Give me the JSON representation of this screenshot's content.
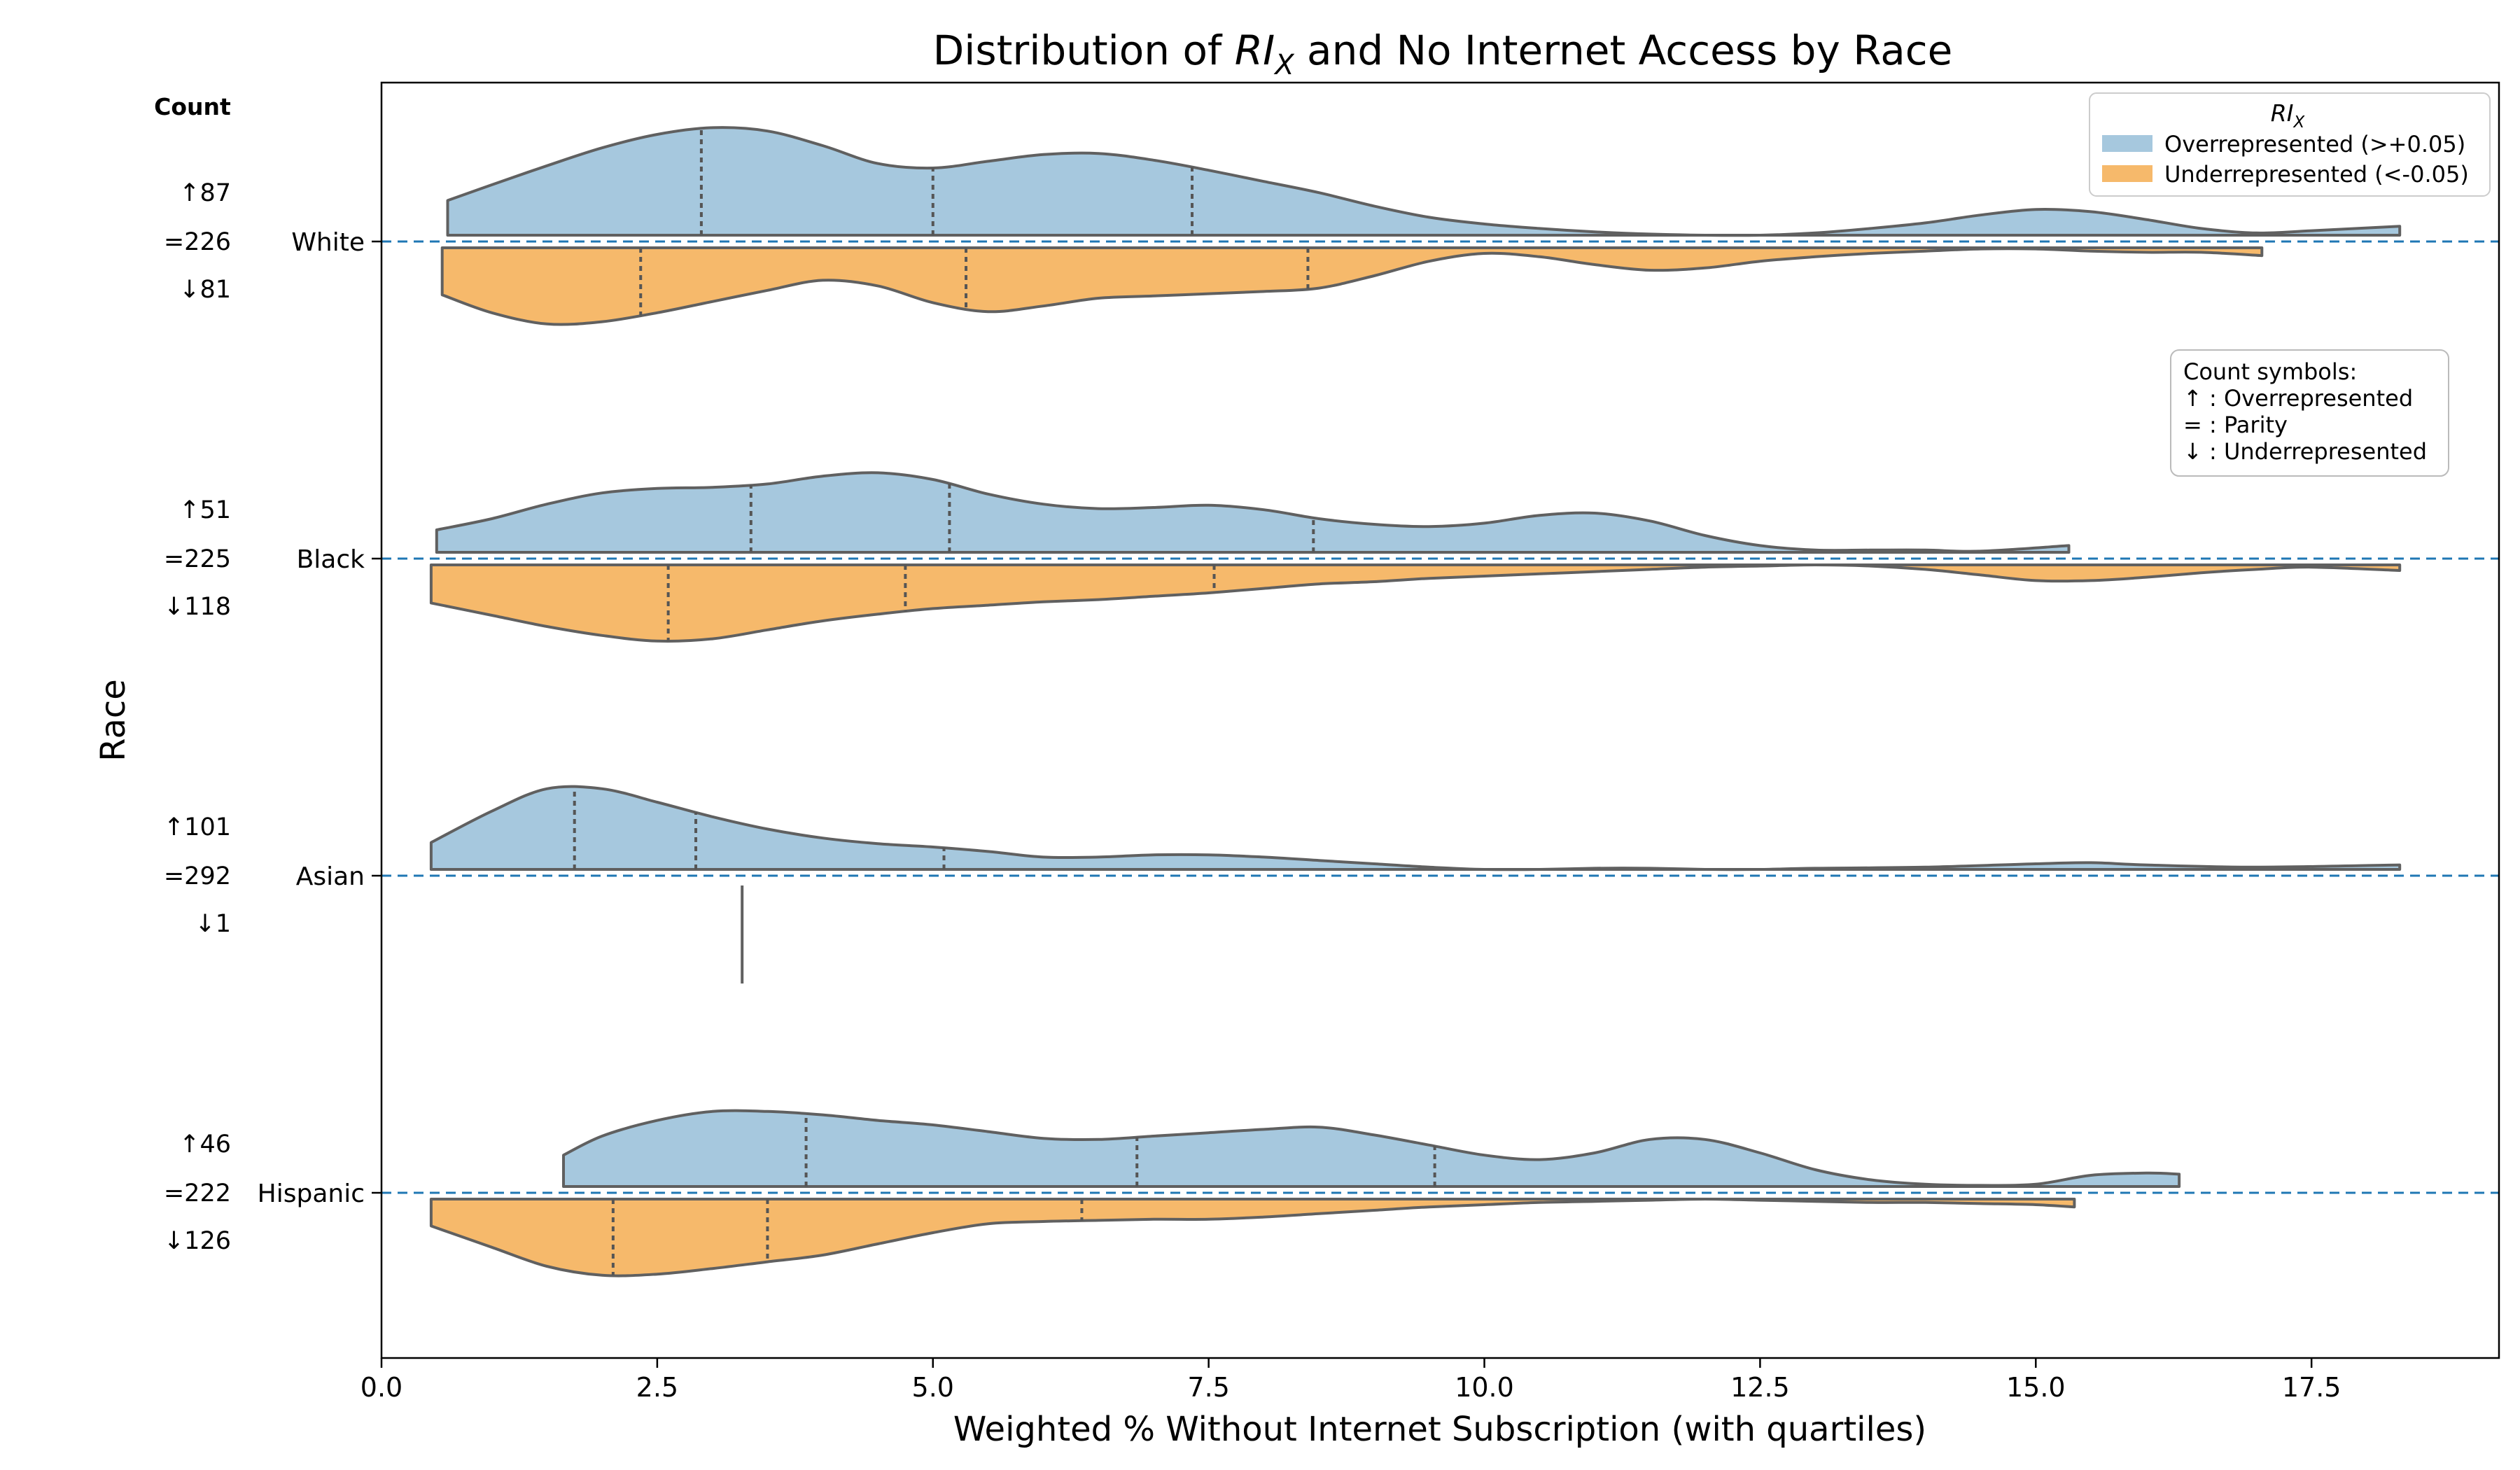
{
  "chart_data": {
    "type": "violin",
    "orientation": "horizontal",
    "split": true,
    "title": {
      "pre": "Distribution of ",
      "main": "RI",
      "sub": "X",
      "post": " and No Internet Access by Race"
    },
    "xlabel": "Weighted % Without Internet Subscription (with quartiles)",
    "ylabel": "Race",
    "xlim": [
      0,
      19.2
    ],
    "x_ticks": [
      0.0,
      2.5,
      5.0,
      7.5,
      10.0,
      12.5,
      15.0,
      17.5
    ],
    "x_tick_labels": [
      "0.0",
      "2.5",
      "5.0",
      "7.5",
      "10.0",
      "12.5",
      "15.0",
      "17.5"
    ],
    "categories": [
      "White",
      "Black",
      "Asian",
      "Hispanic"
    ],
    "count_header": "Count",
    "counts": [
      {
        "race": "White",
        "over": "↑87",
        "parity": "=226",
        "under": "↓81"
      },
      {
        "race": "Black",
        "over": "↑51",
        "parity": "=225",
        "under": "↓118"
      },
      {
        "race": "Asian",
        "over": "↑101",
        "parity": "=292",
        "under": "↓1"
      },
      {
        "race": "Hispanic",
        "over": "↑46",
        "parity": "=222",
        "under": "↓126"
      }
    ],
    "legend": {
      "title_main": "RI",
      "title_sub": "X",
      "position": "top-right",
      "entries": [
        {
          "label": "Overrepresented (>+0.05)",
          "color": "#a6c8de"
        },
        {
          "label": "Underrepresented (<-0.05)",
          "color": "#f6b96b"
        }
      ]
    },
    "count_symbols_box": {
      "lines": [
        "Count symbols:",
        "↑ : Overrepresented",
        "= : Parity",
        "↓ : Underrepresented"
      ],
      "position": "right"
    },
    "colors": {
      "over": "#a6c8de",
      "under": "#f6b96b",
      "outline": "#606060",
      "reference_line": "#1f77b4"
    },
    "series": [
      {
        "race": "White",
        "side": "over",
        "quartiles": [
          2.9,
          5.0,
          7.35
        ],
        "density": [
          [
            0.6,
            0.31
          ],
          [
            1.0,
            0.45
          ],
          [
            1.5,
            0.62
          ],
          [
            2.0,
            0.78
          ],
          [
            2.5,
            0.9
          ],
          [
            3.0,
            0.96
          ],
          [
            3.5,
            0.93
          ],
          [
            4.0,
            0.8
          ],
          [
            4.5,
            0.64
          ],
          [
            5.0,
            0.6
          ],
          [
            5.5,
            0.66
          ],
          [
            6.0,
            0.72
          ],
          [
            6.5,
            0.73
          ],
          [
            7.0,
            0.67
          ],
          [
            7.5,
            0.58
          ],
          [
            8.0,
            0.48
          ],
          [
            8.5,
            0.38
          ],
          [
            9.0,
            0.26
          ],
          [
            9.5,
            0.16
          ],
          [
            10.0,
            0.1
          ],
          [
            10.5,
            0.06
          ],
          [
            11.0,
            0.03
          ],
          [
            11.5,
            0.01
          ],
          [
            12.0,
            0.0
          ],
          [
            12.5,
            0.0
          ],
          [
            13.0,
            0.02
          ],
          [
            13.5,
            0.06
          ],
          [
            14.0,
            0.11
          ],
          [
            14.5,
            0.18
          ],
          [
            15.0,
            0.23
          ],
          [
            15.5,
            0.21
          ],
          [
            16.0,
            0.14
          ],
          [
            16.5,
            0.06
          ],
          [
            17.0,
            0.02
          ],
          [
            17.5,
            0.04
          ],
          [
            18.3,
            0.08
          ]
        ]
      },
      {
        "race": "White",
        "side": "under",
        "quartiles": [
          2.35,
          5.3,
          8.4
        ],
        "density": [
          [
            0.55,
            0.42
          ],
          [
            1.0,
            0.58
          ],
          [
            1.5,
            0.68
          ],
          [
            2.0,
            0.66
          ],
          [
            2.5,
            0.58
          ],
          [
            3.0,
            0.48
          ],
          [
            3.5,
            0.38
          ],
          [
            4.0,
            0.29
          ],
          [
            4.5,
            0.34
          ],
          [
            5.0,
            0.49
          ],
          [
            5.5,
            0.57
          ],
          [
            6.0,
            0.52
          ],
          [
            6.5,
            0.45
          ],
          [
            7.0,
            0.43
          ],
          [
            7.5,
            0.41
          ],
          [
            8.0,
            0.39
          ],
          [
            8.5,
            0.36
          ],
          [
            9.0,
            0.25
          ],
          [
            9.5,
            0.12
          ],
          [
            10.0,
            0.05
          ],
          [
            10.5,
            0.08
          ],
          [
            11.0,
            0.15
          ],
          [
            11.5,
            0.2
          ],
          [
            12.0,
            0.18
          ],
          [
            12.5,
            0.12
          ],
          [
            13.0,
            0.08
          ],
          [
            13.5,
            0.05
          ],
          [
            14.0,
            0.03
          ],
          [
            14.5,
            0.01
          ],
          [
            15.0,
            0.01
          ],
          [
            15.5,
            0.03
          ],
          [
            16.0,
            0.04
          ],
          [
            16.5,
            0.04
          ],
          [
            17.05,
            0.07
          ]
        ]
      },
      {
        "race": "Black",
        "side": "over",
        "quartiles": [
          3.35,
          5.15,
          8.45
        ],
        "density": [
          [
            0.5,
            0.2
          ],
          [
            1.0,
            0.3
          ],
          [
            1.5,
            0.43
          ],
          [
            2.0,
            0.53
          ],
          [
            2.5,
            0.57
          ],
          [
            3.0,
            0.58
          ],
          [
            3.5,
            0.61
          ],
          [
            4.0,
            0.68
          ],
          [
            4.5,
            0.71
          ],
          [
            5.0,
            0.65
          ],
          [
            5.5,
            0.52
          ],
          [
            6.0,
            0.43
          ],
          [
            6.5,
            0.39
          ],
          [
            7.0,
            0.4
          ],
          [
            7.5,
            0.42
          ],
          [
            8.0,
            0.38
          ],
          [
            8.5,
            0.3
          ],
          [
            9.0,
            0.25
          ],
          [
            9.5,
            0.23
          ],
          [
            10.0,
            0.26
          ],
          [
            10.5,
            0.33
          ],
          [
            11.0,
            0.35
          ],
          [
            11.5,
            0.28
          ],
          [
            12.0,
            0.15
          ],
          [
            12.5,
            0.06
          ],
          [
            13.0,
            0.02
          ],
          [
            13.5,
            0.02
          ],
          [
            14.0,
            0.02
          ],
          [
            14.5,
            0.01
          ],
          [
            15.3,
            0.06
          ]
        ]
      },
      {
        "race": "Black",
        "side": "under",
        "quartiles": [
          2.6,
          4.75,
          7.55
        ],
        "density": [
          [
            0.45,
            0.34
          ],
          [
            1.0,
            0.45
          ],
          [
            1.5,
            0.55
          ],
          [
            2.0,
            0.63
          ],
          [
            2.5,
            0.68
          ],
          [
            3.0,
            0.66
          ],
          [
            3.5,
            0.58
          ],
          [
            4.0,
            0.5
          ],
          [
            4.5,
            0.44
          ],
          [
            5.0,
            0.39
          ],
          [
            5.5,
            0.36
          ],
          [
            6.0,
            0.33
          ],
          [
            6.5,
            0.31
          ],
          [
            7.0,
            0.28
          ],
          [
            7.5,
            0.25
          ],
          [
            8.0,
            0.21
          ],
          [
            8.5,
            0.17
          ],
          [
            9.0,
            0.15
          ],
          [
            9.5,
            0.12
          ],
          [
            10.0,
            0.1
          ],
          [
            10.5,
            0.08
          ],
          [
            11.0,
            0.06
          ],
          [
            11.5,
            0.04
          ],
          [
            12.0,
            0.02
          ],
          [
            12.5,
            0.01
          ],
          [
            13.0,
            0.0
          ],
          [
            13.5,
            0.01
          ],
          [
            14.0,
            0.04
          ],
          [
            14.5,
            0.09
          ],
          [
            15.0,
            0.14
          ],
          [
            15.5,
            0.14
          ],
          [
            16.0,
            0.11
          ],
          [
            16.5,
            0.07
          ],
          [
            17.0,
            0.04
          ],
          [
            17.5,
            0.02
          ],
          [
            18.3,
            0.05
          ]
        ]
      },
      {
        "race": "Asian",
        "side": "over",
        "quartiles": [
          1.75,
          2.85,
          5.1
        ],
        "density": [
          [
            0.45,
            0.24
          ],
          [
            1.0,
            0.52
          ],
          [
            1.5,
            0.72
          ],
          [
            2.0,
            0.72
          ],
          [
            2.5,
            0.6
          ],
          [
            3.0,
            0.47
          ],
          [
            3.5,
            0.36
          ],
          [
            4.0,
            0.28
          ],
          [
            4.5,
            0.23
          ],
          [
            5.0,
            0.2
          ],
          [
            5.5,
            0.16
          ],
          [
            6.0,
            0.11
          ],
          [
            6.5,
            0.11
          ],
          [
            7.0,
            0.13
          ],
          [
            7.5,
            0.13
          ],
          [
            8.0,
            0.11
          ],
          [
            8.5,
            0.08
          ],
          [
            9.0,
            0.05
          ],
          [
            9.5,
            0.02
          ],
          [
            10.0,
            0.0
          ],
          [
            10.5,
            0.0
          ],
          [
            11.0,
            0.01
          ],
          [
            11.5,
            0.01
          ],
          [
            12.0,
            0.0
          ],
          [
            12.5,
            0.0
          ],
          [
            13.0,
            0.01
          ],
          [
            14.0,
            0.02
          ],
          [
            15.0,
            0.05
          ],
          [
            15.5,
            0.06
          ],
          [
            16.0,
            0.04
          ],
          [
            17.0,
            0.02
          ],
          [
            18.3,
            0.04
          ]
        ]
      },
      {
        "race": "Asian",
        "side": "under",
        "single_value": 3.27,
        "quartiles": [],
        "density": []
      },
      {
        "race": "Hispanic",
        "side": "over",
        "quartiles": [
          3.85,
          6.85,
          9.55
        ],
        "density": [
          [
            1.65,
            0.28
          ],
          [
            2.0,
            0.45
          ],
          [
            2.5,
            0.59
          ],
          [
            3.0,
            0.67
          ],
          [
            3.5,
            0.67
          ],
          [
            4.0,
            0.64
          ],
          [
            4.5,
            0.59
          ],
          [
            5.0,
            0.55
          ],
          [
            5.5,
            0.49
          ],
          [
            6.0,
            0.43
          ],
          [
            6.5,
            0.42
          ],
          [
            7.0,
            0.45
          ],
          [
            7.5,
            0.48
          ],
          [
            8.0,
            0.51
          ],
          [
            8.5,
            0.53
          ],
          [
            9.0,
            0.46
          ],
          [
            9.5,
            0.37
          ],
          [
            10.0,
            0.28
          ],
          [
            10.5,
            0.24
          ],
          [
            11.0,
            0.3
          ],
          [
            11.5,
            0.42
          ],
          [
            12.0,
            0.42
          ],
          [
            12.5,
            0.3
          ],
          [
            13.0,
            0.15
          ],
          [
            13.5,
            0.06
          ],
          [
            14.0,
            0.02
          ],
          [
            14.5,
            0.01
          ],
          [
            15.0,
            0.02
          ],
          [
            15.5,
            0.1
          ],
          [
            16.0,
            0.12
          ],
          [
            16.3,
            0.11
          ]
        ]
      },
      {
        "race": "Hispanic",
        "side": "under",
        "quartiles": [
          2.1,
          3.5,
          6.35
        ],
        "density": [
          [
            0.45,
            0.24
          ],
          [
            1.0,
            0.43
          ],
          [
            1.5,
            0.6
          ],
          [
            2.0,
            0.68
          ],
          [
            2.5,
            0.67
          ],
          [
            3.0,
            0.62
          ],
          [
            3.5,
            0.56
          ],
          [
            4.0,
            0.5
          ],
          [
            4.5,
            0.4
          ],
          [
            5.0,
            0.3
          ],
          [
            5.5,
            0.22
          ],
          [
            6.0,
            0.2
          ],
          [
            6.5,
            0.19
          ],
          [
            7.0,
            0.18
          ],
          [
            7.5,
            0.18
          ],
          [
            8.0,
            0.16
          ],
          [
            8.5,
            0.13
          ],
          [
            9.0,
            0.1
          ],
          [
            9.5,
            0.07
          ],
          [
            10.0,
            0.05
          ],
          [
            10.5,
            0.03
          ],
          [
            11.0,
            0.02
          ],
          [
            11.5,
            0.01
          ],
          [
            12.0,
            0.0
          ],
          [
            12.5,
            0.01
          ],
          [
            13.0,
            0.02
          ],
          [
            13.5,
            0.03
          ],
          [
            14.0,
            0.03
          ],
          [
            14.5,
            0.04
          ],
          [
            15.0,
            0.05
          ],
          [
            15.35,
            0.07
          ]
        ]
      }
    ]
  }
}
